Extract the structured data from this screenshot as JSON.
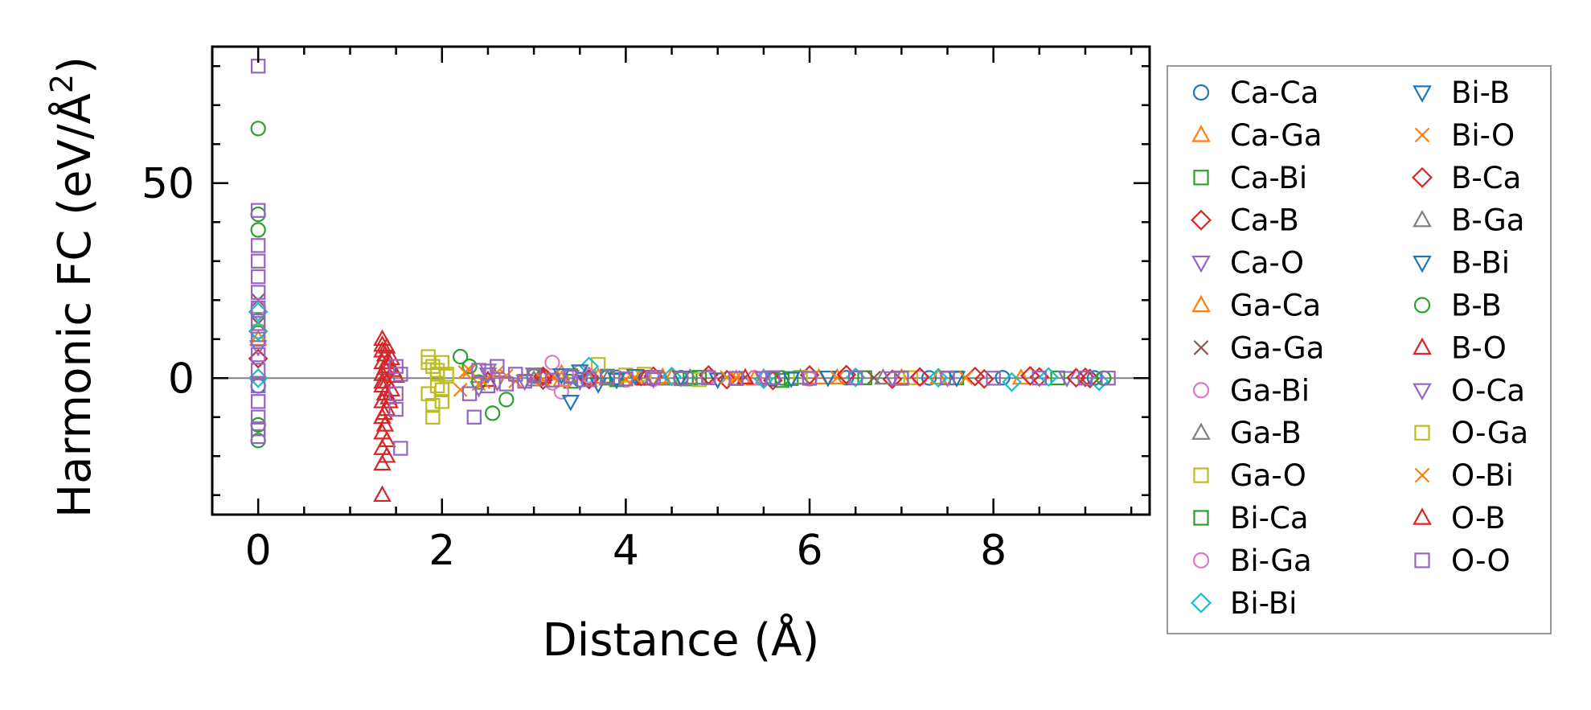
{
  "chart_data": {
    "type": "scatter",
    "xlabel": "Distance (Å)",
    "ylabel": "Harmonic FC (eV/Å",
    "ylabel_sup": "2",
    "ylabel_close": ")",
    "xlim": [
      -0.5,
      9.7
    ],
    "ylim": [
      -35,
      85
    ],
    "x_ticks": [
      0,
      2,
      4,
      6,
      8
    ],
    "x_tick_labels": [
      "0",
      "2",
      "4",
      "6",
      "8"
    ],
    "y_ticks": [
      0,
      50
    ],
    "y_tick_labels": [
      "0",
      "50"
    ],
    "zero_line": true,
    "grid": false,
    "legend_position": "outside-right",
    "series": [
      {
        "name": "Ca-Ca",
        "marker": "circle",
        "color": "#1f77b4",
        "points": [
          [
            0,
            12
          ],
          [
            0,
            -2
          ],
          [
            3.5,
            -0.4
          ],
          [
            3.9,
            0.2
          ],
          [
            4.6,
            0.1
          ],
          [
            5.6,
            -0.2
          ],
          [
            6.4,
            0.1
          ],
          [
            7.3,
            0.05
          ],
          [
            8.1,
            0.1
          ],
          [
            9.1,
            0.05
          ]
        ]
      },
      {
        "name": "Ca-Ga",
        "marker": "triangle-up",
        "color": "#ff7f0e",
        "points": [
          [
            0,
            10
          ],
          [
            3.3,
            1.2
          ],
          [
            3.6,
            -0.6
          ],
          [
            4.4,
            0.3
          ],
          [
            5.2,
            -0.2
          ],
          [
            6.1,
            0.1
          ],
          [
            7.0,
            0.1
          ],
          [
            8.3,
            0.05
          ]
        ]
      },
      {
        "name": "Ca-Bi",
        "marker": "square",
        "color": "#2ca02c",
        "points": [
          [
            0,
            15
          ],
          [
            3.4,
            -0.8
          ],
          [
            3.8,
            0.5
          ],
          [
            4.7,
            -0.2
          ],
          [
            5.7,
            -0.6
          ],
          [
            6.6,
            0.1
          ],
          [
            7.6,
            0.05
          ],
          [
            8.7,
            0.05
          ]
        ]
      },
      {
        "name": "Ca-B",
        "marker": "diamond",
        "color": "#d62728",
        "points": [
          [
            0,
            5
          ],
          [
            3.1,
            -0.5
          ],
          [
            3.6,
            0.4
          ],
          [
            4.3,
            0.5
          ],
          [
            5.1,
            -0.4
          ],
          [
            6.0,
            0.8
          ],
          [
            6.9,
            -0.3
          ],
          [
            7.8,
            0.4
          ],
          [
            8.5,
            0.3
          ],
          [
            9.0,
            0.2
          ]
        ]
      },
      {
        "name": "Ca-O",
        "marker": "triangle-down",
        "color": "#9467bd",
        "points": [
          [
            0,
            8
          ],
          [
            2.4,
            -2.5
          ],
          [
            2.5,
            2.0
          ],
          [
            2.6,
            -1.0
          ],
          [
            3.0,
            1.0
          ],
          [
            3.5,
            -0.8
          ],
          [
            4.2,
            0.4
          ],
          [
            5.0,
            -0.3
          ],
          [
            6.2,
            0.2
          ],
          [
            7.5,
            0.1
          ],
          [
            8.8,
            0.1
          ]
        ]
      },
      {
        "name": "Ga-Ca",
        "marker": "triangle-up",
        "color": "#ff7f0e",
        "points": [
          [
            3.3,
            -0.5
          ],
          [
            3.7,
            0.3
          ],
          [
            4.5,
            0.2
          ],
          [
            5.4,
            -0.2
          ],
          [
            6.3,
            0.1
          ],
          [
            7.4,
            0.1
          ]
        ]
      },
      {
        "name": "Ga-Ga",
        "marker": "x",
        "color": "#8c564b",
        "points": [
          [
            0,
            20
          ],
          [
            0,
            14
          ],
          [
            3.2,
            0.6
          ],
          [
            4.1,
            -0.3
          ],
          [
            5.3,
            0.2
          ],
          [
            6.7,
            0.1
          ]
        ]
      },
      {
        "name": "Ga-Bi",
        "marker": "circle",
        "color": "#e377c2",
        "points": [
          [
            0,
            18
          ],
          [
            3.2,
            4.0
          ],
          [
            3.3,
            -3.5
          ],
          [
            3.5,
            1.5
          ],
          [
            4.0,
            -0.5
          ],
          [
            4.9,
            0.3
          ],
          [
            6.0,
            -0.2
          ],
          [
            7.2,
            0.1
          ]
        ]
      },
      {
        "name": "Ga-B",
        "marker": "triangle-up",
        "color": "#7f7f7f",
        "points": [
          [
            3.0,
            -0.4
          ],
          [
            3.6,
            0.3
          ],
          [
            4.4,
            -0.2
          ],
          [
            5.5,
            0.1
          ],
          [
            6.8,
            0.05
          ]
        ]
      },
      {
        "name": "Ga-O",
        "marker": "square",
        "color": "#bcbd22",
        "points": [
          [
            0,
            12
          ],
          [
            1.85,
            5.5
          ],
          [
            1.85,
            -4.0
          ],
          [
            1.9,
            3.0
          ],
          [
            1.9,
            -10.0
          ],
          [
            1.95,
            1.0
          ],
          [
            1.95,
            -2.0
          ],
          [
            2.0,
            4.0
          ],
          [
            2.0,
            -6.0
          ],
          [
            2.05,
            0.5
          ],
          [
            3.7,
            3.5
          ],
          [
            4.0,
            0.8
          ],
          [
            4.2,
            1.0
          ],
          [
            4.8,
            -0.4
          ],
          [
            5.9,
            0.2
          ],
          [
            7.1,
            0.1
          ]
        ]
      },
      {
        "name": "Bi-Ca",
        "marker": "square",
        "color": "#2ca02c",
        "points": [
          [
            3.4,
            0.6
          ],
          [
            3.9,
            -0.4
          ],
          [
            4.8,
            0.2
          ],
          [
            5.8,
            -0.1
          ],
          [
            7.0,
            0.05
          ]
        ]
      },
      {
        "name": "Bi-Ga",
        "marker": "circle",
        "color": "#e377c2",
        "points": [
          [
            3.2,
            -1.2
          ],
          [
            3.6,
            0.6
          ],
          [
            4.3,
            -0.3
          ],
          [
            5.4,
            0.1
          ],
          [
            6.5,
            0.05
          ]
        ]
      },
      {
        "name": "Bi-Bi",
        "marker": "diamond",
        "color": "#17becf",
        "points": [
          [
            0,
            17
          ],
          [
            0,
            12
          ],
          [
            0,
            0
          ],
          [
            3.6,
            3.0
          ],
          [
            4.5,
            0.4
          ],
          [
            5.5,
            -0.3
          ],
          [
            6.5,
            0.2
          ],
          [
            7.4,
            0.1
          ],
          [
            8.2,
            -1.0
          ],
          [
            8.6,
            0.3
          ],
          [
            9.15,
            -0.8
          ]
        ]
      },
      {
        "name": "Bi-B",
        "marker": "triangle-down",
        "color": "#1f77b4",
        "points": [
          [
            3.4,
            -6.0
          ],
          [
            3.5,
            1.8
          ],
          [
            3.7,
            -1.5
          ],
          [
            4.1,
            0.6
          ],
          [
            5.0,
            -0.3
          ],
          [
            6.2,
            0.2
          ],
          [
            7.6,
            0.1
          ]
        ]
      },
      {
        "name": "Bi-O",
        "marker": "x",
        "color": "#ff7f0e",
        "points": [
          [
            2.2,
            -3.0
          ],
          [
            2.3,
            2.0
          ],
          [
            2.4,
            -1.5
          ],
          [
            2.6,
            1.5
          ],
          [
            2.8,
            -0.8
          ],
          [
            3.2,
            0.5
          ],
          [
            4.0,
            -0.3
          ],
          [
            5.1,
            0.2
          ],
          [
            6.3,
            0.1
          ],
          [
            7.7,
            0.05
          ]
        ]
      },
      {
        "name": "B-Ca",
        "marker": "diamond",
        "color": "#d62728",
        "points": [
          [
            3.1,
            0.5
          ],
          [
            3.6,
            -0.4
          ],
          [
            4.9,
            0.8
          ],
          [
            5.6,
            -0.6
          ],
          [
            6.4,
            0.9
          ],
          [
            7.2,
            0.3
          ],
          [
            7.9,
            -0.2
          ],
          [
            8.4,
            0.6
          ],
          [
            8.9,
            0.1
          ],
          [
            9.05,
            -0.1
          ]
        ]
      },
      {
        "name": "B-Ga",
        "marker": "triangle-up",
        "color": "#7f7f7f",
        "points": [
          [
            3.1,
            0.3
          ],
          [
            3.8,
            -0.2
          ],
          [
            4.7,
            0.1
          ],
          [
            5.9,
            0.05
          ]
        ]
      },
      {
        "name": "B-Bi",
        "marker": "triangle-down",
        "color": "#1f77b4",
        "points": [
          [
            3.3,
            0.8
          ],
          [
            3.9,
            -0.4
          ],
          [
            4.6,
            0.2
          ],
          [
            5.8,
            -0.1
          ]
        ]
      },
      {
        "name": "B-B",
        "marker": "circle",
        "color": "#2ca02c",
        "points": [
          [
            0,
            64
          ],
          [
            0,
            42
          ],
          [
            0,
            38
          ],
          [
            0,
            -12
          ],
          [
            0,
            -16
          ],
          [
            2.2,
            5.5
          ],
          [
            2.3,
            3.0
          ],
          [
            2.4,
            -1.0
          ],
          [
            2.55,
            -9.0
          ],
          [
            2.7,
            -5.5
          ],
          [
            3.0,
            0.5
          ],
          [
            3.8,
            0.2
          ],
          [
            4.6,
            -0.1
          ],
          [
            5.7,
            0.05
          ],
          [
            9.2,
            0.0
          ]
        ]
      },
      {
        "name": "B-O",
        "marker": "triangle-up",
        "color": "#d62728",
        "points": [
          [
            1.35,
            10.0
          ],
          [
            1.35,
            7.0
          ],
          [
            1.35,
            4.0
          ],
          [
            1.35,
            1.0
          ],
          [
            1.35,
            -2.0
          ],
          [
            1.35,
            -6.0
          ],
          [
            1.35,
            -10.0
          ],
          [
            1.35,
            -14.0
          ],
          [
            1.35,
            -18.0
          ],
          [
            1.35,
            -22.0
          ],
          [
            1.35,
            -30.0
          ],
          [
            1.38,
            6.0
          ],
          [
            1.38,
            2.5
          ],
          [
            1.38,
            -4.0
          ],
          [
            1.38,
            -12.0
          ],
          [
            1.4,
            8.0
          ],
          [
            1.4,
            -1.0
          ],
          [
            1.4,
            -8.0
          ],
          [
            1.4,
            -16.0
          ],
          [
            1.42,
            3.0
          ],
          [
            1.42,
            -5.0
          ],
          [
            1.45,
            5.0
          ],
          [
            1.45,
            -3.0
          ],
          [
            1.5,
            0.5
          ],
          [
            2.5,
            -0.5
          ],
          [
            3.1,
            0.3
          ],
          [
            4.2,
            -0.2
          ],
          [
            5.3,
            0.1
          ]
        ]
      },
      {
        "name": "O-Ca",
        "marker": "triangle-down",
        "color": "#9467bd",
        "points": [
          [
            2.5,
            1.0
          ],
          [
            2.9,
            -0.8
          ],
          [
            3.4,
            0.4
          ],
          [
            4.3,
            -0.2
          ],
          [
            5.5,
            0.1
          ],
          [
            6.9,
            0.05
          ]
        ]
      },
      {
        "name": "O-Ga",
        "marker": "square",
        "color": "#bcbd22",
        "points": [
          [
            1.85,
            4.0
          ],
          [
            1.9,
            -7.0
          ],
          [
            1.95,
            2.0
          ],
          [
            2.0,
            -3.0
          ],
          [
            2.05,
            1.0
          ]
        ]
      },
      {
        "name": "O-Bi",
        "marker": "x",
        "color": "#ff7f0e",
        "points": [
          [
            2.25,
            1.5
          ],
          [
            2.45,
            -1.0
          ],
          [
            2.7,
            0.6
          ],
          [
            3.1,
            -0.4
          ],
          [
            4.1,
            0.2
          ],
          [
            5.2,
            0.1
          ]
        ]
      },
      {
        "name": "O-B",
        "marker": "triangle-up",
        "color": "#d62728",
        "points": [
          [
            1.35,
            8.5
          ],
          [
            1.35,
            -1.0
          ],
          [
            1.37,
            -9.0
          ],
          [
            1.4,
            4.0
          ],
          [
            1.4,
            -20.0
          ],
          [
            1.43,
            -6.0
          ],
          [
            1.47,
            2.0
          ]
        ]
      },
      {
        "name": "O-O",
        "marker": "square",
        "color": "#9467bd",
        "points": [
          [
            0,
            80
          ],
          [
            0,
            43
          ],
          [
            0,
            34
          ],
          [
            0,
            30
          ],
          [
            0,
            26
          ],
          [
            0,
            22
          ],
          [
            0,
            18
          ],
          [
            0,
            14
          ],
          [
            0,
            10
          ],
          [
            0,
            6
          ],
          [
            0,
            2
          ],
          [
            0,
            -2
          ],
          [
            0,
            -6
          ],
          [
            0,
            -10
          ],
          [
            0,
            -13
          ],
          [
            0,
            -15
          ],
          [
            1.5,
            3.0
          ],
          [
            1.5,
            -4.0
          ],
          [
            1.5,
            -8.0
          ],
          [
            1.55,
            -18.0
          ],
          [
            1.55,
            1.0
          ],
          [
            2.3,
            -4.0
          ],
          [
            2.35,
            -10.0
          ],
          [
            2.4,
            2.0
          ],
          [
            2.5,
            -2.0
          ],
          [
            2.6,
            3.0
          ],
          [
            2.7,
            -1.5
          ],
          [
            2.8,
            1.0
          ],
          [
            2.9,
            -0.8
          ],
          [
            3.0,
            0.6
          ],
          [
            3.2,
            -0.5
          ],
          [
            3.4,
            0.4
          ],
          [
            3.6,
            -0.3
          ],
          [
            3.8,
            0.3
          ],
          [
            4.0,
            -0.2
          ],
          [
            4.3,
            0.2
          ],
          [
            4.6,
            -0.15
          ],
          [
            4.9,
            0.1
          ],
          [
            5.2,
            -0.1
          ],
          [
            5.6,
            0.1
          ],
          [
            6.0,
            -0.05
          ],
          [
            6.5,
            0.05
          ],
          [
            7.0,
            -0.05
          ],
          [
            7.5,
            0.05
          ],
          [
            8.0,
            -0.02
          ],
          [
            8.5,
            0.02
          ],
          [
            9.0,
            0.01
          ],
          [
            9.25,
            0.0
          ]
        ]
      }
    ]
  }
}
